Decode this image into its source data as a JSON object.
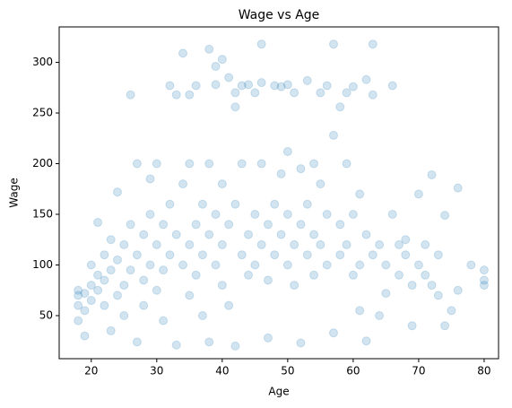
{
  "chart_data": {
    "type": "scatter",
    "title": "Wage vs Age",
    "x_label": "Age",
    "y_label": "Wage",
    "xlim": [
      15.1,
      82.2
    ],
    "ylim": [
      7.5,
      335
    ],
    "xticks": [
      20,
      30,
      40,
      50,
      60,
      70,
      80
    ],
    "yticks": [
      50,
      100,
      150,
      200,
      250,
      300
    ],
    "color": "#1f77b4",
    "opacity": 0.2,
    "x": [
      18,
      18,
      18,
      18,
      19,
      19,
      19,
      20,
      20,
      20,
      21,
      21,
      21,
      22,
      22,
      22,
      23,
      23,
      23,
      24,
      24,
      24,
      25,
      25,
      25,
      26,
      26,
      26,
      27,
      27,
      27,
      28,
      28,
      28,
      29,
      29,
      29,
      30,
      30,
      30,
      31,
      31,
      31,
      32,
      32,
      32,
      33,
      33,
      33,
      34,
      34,
      34,
      35,
      35,
      35,
      35,
      36,
      36,
      36,
      37,
      37,
      37,
      38,
      38,
      38,
      38,
      39,
      39,
      39,
      39,
      40,
      40,
      40,
      40,
      41,
      41,
      41,
      42,
      42,
      42,
      42,
      43,
      43,
      43,
      44,
      44,
      44,
      45,
      45,
      45,
      46,
      46,
      46,
      46,
      47,
      47,
      47,
      48,
      48,
      48,
      49,
      49,
      49,
      50,
      50,
      50,
      50,
      51,
      51,
      51,
      52,
      52,
      52,
      53,
      53,
      53,
      54,
      54,
      54,
      55,
      55,
      55,
      56,
      56,
      56,
      57,
      57,
      57,
      58,
      58,
      58,
      59,
      59,
      59,
      60,
      60,
      60,
      61,
      61,
      61,
      62,
      62,
      62,
      63,
      63,
      63,
      64,
      64,
      65,
      65,
      66,
      66,
      67,
      67,
      68,
      68,
      69,
      69,
      70,
      70,
      71,
      71,
      72,
      72,
      73,
      73,
      74,
      74,
      75,
      76,
      76,
      78,
      80,
      80,
      80
    ],
    "values": [
      70,
      75,
      60,
      45,
      30,
      72,
      55,
      80,
      65,
      100,
      75,
      90,
      142,
      60,
      85,
      110,
      35,
      95,
      125,
      70,
      105,
      172,
      80,
      120,
      50,
      268,
      95,
      140,
      24,
      110,
      200,
      85,
      130,
      60,
      100,
      150,
      185,
      200,
      120,
      75,
      140,
      95,
      45,
      277,
      110,
      160,
      21,
      130,
      268,
      309,
      100,
      180,
      200,
      120,
      70,
      268,
      140,
      90,
      277,
      160,
      110,
      50,
      313,
      200,
      130,
      24,
      296,
      150,
      100,
      278,
      303,
      180,
      120,
      80,
      285,
      140,
      60,
      256,
      270,
      160,
      20,
      200,
      110,
      277,
      130,
      90,
      278,
      150,
      100,
      270,
      318,
      200,
      120,
      280,
      28,
      140,
      85,
      277,
      160,
      110,
      190,
      130,
      276,
      212,
      150,
      100,
      278,
      120,
      80,
      270,
      140,
      23,
      195,
      282,
      110,
      160,
      200,
      130,
      90,
      120,
      270,
      180,
      277,
      150,
      100,
      318,
      228,
      33,
      256,
      140,
      110,
      200,
      120,
      270,
      150,
      90,
      276,
      170,
      100,
      55,
      283,
      130,
      25,
      318,
      110,
      268,
      120,
      50,
      100,
      72,
      277,
      150,
      120,
      90,
      110,
      125,
      80,
      40,
      170,
      100,
      90,
      120,
      189,
      80,
      110,
      70,
      149,
      40,
      55,
      176,
      75,
      100,
      95,
      85,
      80
    ]
  }
}
